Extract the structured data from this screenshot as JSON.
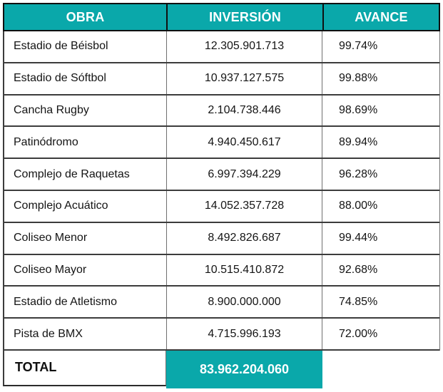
{
  "chart_data": {
    "type": "table",
    "title": "",
    "columns": [
      "OBRA",
      "INVERSIÓN",
      "AVANCE"
    ],
    "rows": [
      {
        "obra": "Estadio de Béisbol",
        "inversion": "12.305.901.713",
        "avance": "99.74%"
      },
      {
        "obra": "Estadio de Sóftbol",
        "inversion": "10.937.127.575",
        "avance": "99.88%"
      },
      {
        "obra": "Cancha Rugby",
        "inversion": "2.104.738.446",
        "avance": "98.69%"
      },
      {
        "obra": "Patinódromo",
        "inversion": "4.940.450.617",
        "avance": "89.94%"
      },
      {
        "obra": "Complejo de Raquetas",
        "inversion": "6.997.394.229",
        "avance": "96.28%"
      },
      {
        "obra": "Complejo Acuático",
        "inversion": "14.052.357.728",
        "avance": "88.00%"
      },
      {
        "obra": "Coliseo Menor",
        "inversion": "8.492.826.687",
        "avance": "99.44%"
      },
      {
        "obra": "Coliseo Mayor",
        "inversion": "10.515.410.872",
        "avance": "92.68%"
      },
      {
        "obra": "Estadio de Atletismo",
        "inversion": "8.900.000.000",
        "avance": "74.85%"
      },
      {
        "obra": "Pista de BMX",
        "inversion": "4.715.996.193",
        "avance": "72.00%"
      }
    ],
    "total": {
      "label": "TOTAL",
      "inversion": "83.962.204.060",
      "avance": ""
    }
  },
  "colors": {
    "accent_teal": "#0aa8aa",
    "header_text": "#ffffff",
    "body_text": "#141414",
    "header_border": "#101010",
    "row_border": "#3c3c3c"
  }
}
